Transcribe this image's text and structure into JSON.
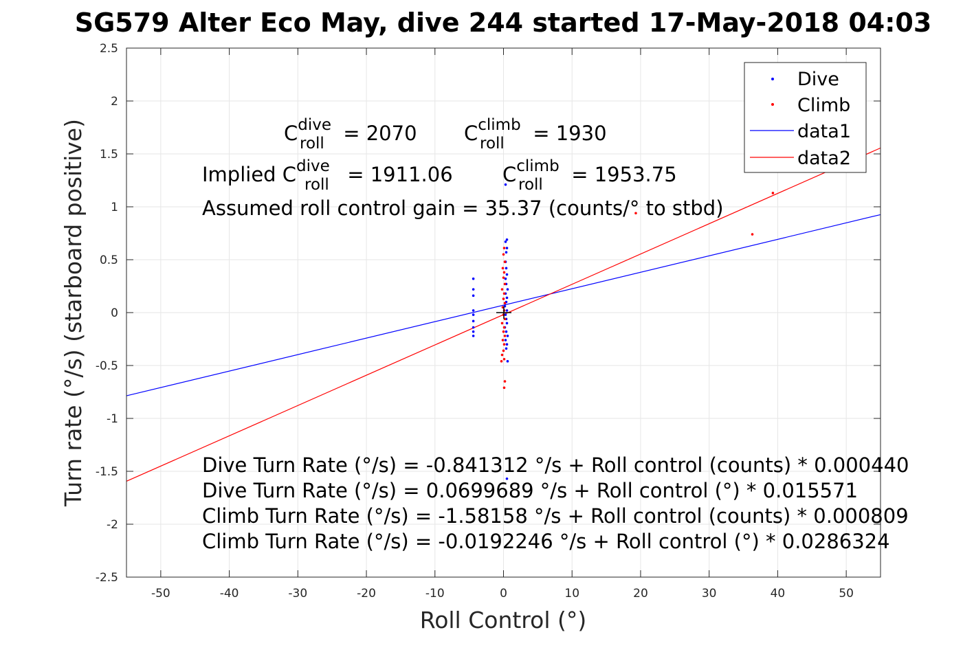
{
  "chart_data": {
    "type": "scatter",
    "title": "SG579 Alter Eco May, dive 244 started 17-May-2018 04:03",
    "xlabel": "Roll Control (°)",
    "ylabel": "Turn rate (°/s) (starboard positive)",
    "xlim": [
      -55,
      55
    ],
    "ylim": [
      -2.5,
      2.5
    ],
    "grid": true,
    "xticks": [
      -50,
      -40,
      -30,
      -20,
      -10,
      0,
      10,
      20,
      30,
      40,
      50
    ],
    "xtick_labels": [
      "-50",
      "-40",
      "-30",
      "-20",
      "-10",
      "0",
      "10",
      "20",
      "30",
      "40",
      "50"
    ],
    "yticks": [
      2.5,
      2,
      1.5,
      1,
      0.5,
      0,
      -0.5,
      -1,
      -1.5,
      -2,
      -2.5
    ],
    "ytick_labels": [
      "2.5",
      "2",
      "1.5",
      "1",
      "0.5",
      "0",
      "-0.5",
      "-1",
      "-1.5",
      "-2",
      "-2.5"
    ],
    "legend_position": "top-right",
    "series": [
      {
        "name": "Dive",
        "kind": "points",
        "color": "#0000ff",
        "points": [
          [
            -4.4,
            0.32
          ],
          [
            -4.4,
            0.22
          ],
          [
            -4.4,
            0.16
          ],
          [
            -4.4,
            0.02
          ],
          [
            -4.4,
            -0.02
          ],
          [
            -4.4,
            -0.08
          ],
          [
            -4.4,
            -0.14
          ],
          [
            -4.4,
            -0.18
          ],
          [
            -4.4,
            -0.22
          ],
          [
            0.3,
            1.21
          ],
          [
            0.5,
            0.69
          ],
          [
            0.3,
            0.67
          ],
          [
            0.5,
            0.61
          ],
          [
            0.4,
            0.57
          ],
          [
            0.3,
            0.48
          ],
          [
            0.4,
            0.42
          ],
          [
            0.5,
            0.36
          ],
          [
            0.3,
            0.32
          ],
          [
            0.4,
            0.27
          ],
          [
            0.6,
            0.22
          ],
          [
            0.3,
            0.18
          ],
          [
            0.5,
            0.14
          ],
          [
            0.4,
            0.1
          ],
          [
            0.2,
            0.06
          ],
          [
            0.5,
            0.02
          ],
          [
            0.3,
            -0.02
          ],
          [
            0.4,
            -0.06
          ],
          [
            0.5,
            -0.1
          ],
          [
            0.2,
            -0.14
          ],
          [
            0.4,
            -0.18
          ],
          [
            0.6,
            -0.22
          ],
          [
            0.3,
            -0.26
          ],
          [
            0.5,
            -0.3
          ],
          [
            0.4,
            -0.34
          ],
          [
            0.6,
            -0.46
          ],
          [
            0.5,
            -1.57
          ]
        ]
      },
      {
        "name": "Climb",
        "kind": "points",
        "color": "#ff0000",
        "points": [
          [
            39.3,
            1.13
          ],
          [
            36.3,
            0.74
          ],
          [
            19.3,
            0.94
          ],
          [
            0.1,
            0.61
          ],
          [
            0.0,
            0.55
          ],
          [
            0.2,
            0.48
          ],
          [
            -0.1,
            0.42
          ],
          [
            0.1,
            0.38
          ],
          [
            0.0,
            0.33
          ],
          [
            0.2,
            0.27
          ],
          [
            -0.2,
            0.22
          ],
          [
            0.1,
            0.18
          ],
          [
            0.0,
            0.13
          ],
          [
            0.2,
            0.09
          ],
          [
            -0.1,
            0.05
          ],
          [
            0.1,
            0.02
          ],
          [
            0.0,
            -0.02
          ],
          [
            0.2,
            -0.06
          ],
          [
            -0.2,
            -0.1
          ],
          [
            0.1,
            -0.14
          ],
          [
            0.0,
            -0.18
          ],
          [
            0.2,
            -0.22
          ],
          [
            -0.1,
            -0.26
          ],
          [
            0.1,
            -0.3
          ],
          [
            0.0,
            -0.36
          ],
          [
            -0.2,
            -0.4
          ],
          [
            0.1,
            -0.44
          ],
          [
            -0.3,
            -0.46
          ],
          [
            0.2,
            -0.65
          ],
          [
            0.1,
            -0.71
          ]
        ]
      },
      {
        "name": "data1",
        "kind": "line",
        "color": "#0000ff",
        "x": [
          -55,
          55
        ],
        "y": [
          -0.786,
          0.926
        ]
      },
      {
        "name": "data2",
        "kind": "line",
        "color": "#ff0000",
        "x": [
          -55,
          55
        ],
        "y": [
          -1.594,
          1.556
        ]
      }
    ],
    "origin_marker": {
      "x": 0,
      "y": 0,
      "symbol": "+"
    },
    "annotations": {
      "c_dive_prefix": "C",
      "c_dive_sup": "dive",
      "c_dive_sub": "roll",
      "c_dive_value": " = 2070",
      "c_climb_prefix": "C",
      "c_climb_sup": "climb",
      "c_climb_sub": "roll",
      "c_climb_value": " = 1930",
      "implied_prefix": "Implied C",
      "implied_dive_sup": "dive",
      "implied_dive_sub": "roll",
      "implied_dive_value": " = 1911.06",
      "implied_climb_prefix": "C",
      "implied_climb_sup": "climb",
      "implied_climb_sub": "roll",
      "implied_climb_value": " = 1953.75",
      "gain": "Assumed roll control gain = 35.37 (counts/° to stbd)",
      "eq1": "Dive Turn Rate (°/s) = -0.841312 °/s + Roll control (counts) * 0.000440",
      "eq2": "Dive Turn Rate (°/s) = 0.0699689 °/s + Roll control (°) * 0.015571",
      "eq3": "Climb Turn Rate (°/s) = -1.58158 °/s + Roll control (counts) * 0.000809",
      "eq4": "Climb Turn Rate (°/s) = -0.0192246 °/s + Roll control (°) * 0.0286324"
    }
  }
}
